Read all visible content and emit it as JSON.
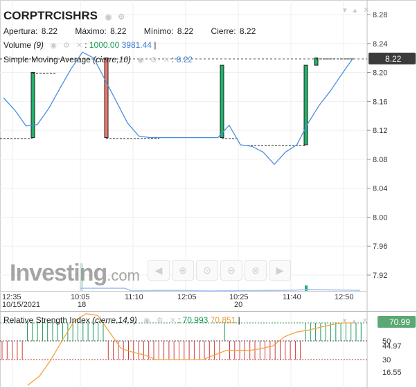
{
  "header": {
    "ticker": "CORPTRCISHRS",
    "open_label": "Apertura:",
    "open": "8.22",
    "high_label": "Máximo:",
    "high": "8.22",
    "low_label": "Mínimo:",
    "low": "8.22",
    "close_label": "Cierre:",
    "close": "8.22"
  },
  "volume_legend": {
    "name": "Volume",
    "params": "(9)",
    "value1": "1000.00",
    "value2": "3981.44"
  },
  "sma_legend": {
    "name": "Simple Moving Average",
    "params": "(cierre,10)",
    "value": "8.22"
  },
  "rsi_legend": {
    "name": "Relative Strength Index",
    "params": "(cierre,14,9)",
    "value1": "70.993",
    "value2": "70.851"
  },
  "logo": {
    "text": "Investing",
    "suffix": ".com"
  },
  "colors": {
    "up": "#1db36a",
    "down": "#f0766b",
    "sma": "#4a8fe0",
    "rsi": "#f3a33d",
    "rsi_hist_up": "#1c9a5a",
    "rsi_hist_down": "#d4393a",
    "price_label": "#3b3b3b",
    "rsi_label": "#5ba874"
  },
  "chart_data": [
    {
      "type": "candlestick",
      "title": "CORPTRCISHRS",
      "x_tick_labels": [
        "12:35",
        "10:05",
        "11:10",
        "12:05",
        "10:25",
        "11:40",
        "12:50"
      ],
      "x_date_labels": [
        "10/15/2021",
        "18",
        "20"
      ],
      "y_ticks": [
        "8.28",
        "8.24",
        "8.20",
        "8.16",
        "8.12",
        "8.08",
        "8.04",
        "8.00",
        "7.96",
        "7.92"
      ],
      "ylim": [
        7.9,
        8.29
      ],
      "last_price": "8.22",
      "candles": [
        {
          "open": 8.11,
          "close": 8.2,
          "dir": "up"
        },
        {
          "open": 8.22,
          "close": 8.11,
          "dir": "down"
        },
        {
          "open": 8.11,
          "close": 8.21,
          "dir": "up"
        },
        {
          "open": 8.1,
          "close": 8.21,
          "dir": "up"
        },
        {
          "open": 8.21,
          "close": 8.22,
          "dir": "up"
        }
      ],
      "sma": [
        8.165,
        8.148,
        8.126,
        8.128,
        8.15,
        8.178,
        8.205,
        8.228,
        8.22,
        8.19,
        8.16,
        8.13,
        8.112,
        8.11,
        8.11,
        8.11,
        8.11,
        8.11,
        8.11,
        8.11,
        8.127,
        8.1,
        8.098,
        8.09,
        8.073,
        8.09,
        8.1,
        8.13,
        8.155,
        8.175,
        8.198,
        8.22
      ]
    },
    {
      "type": "line",
      "title": "Relative Strength Index",
      "y_ticks": [
        "50",
        "44.97",
        "30",
        "16.55"
      ],
      "levels": [
        70,
        50,
        30
      ],
      "last_value": "70.99",
      "rsi": [
        2,
        12,
        30,
        52,
        72,
        80,
        78,
        60,
        42,
        38,
        35,
        30,
        30,
        30,
        30,
        30,
        35,
        40,
        40,
        40,
        42,
        45,
        55,
        60,
        62,
        65,
        68,
        70,
        70
      ]
    }
  ]
}
